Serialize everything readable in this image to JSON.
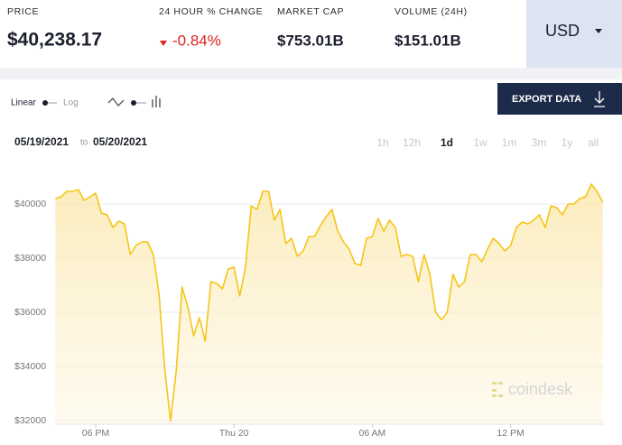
{
  "header": {
    "price_label": "PRICE",
    "price": "$40,238.17",
    "change_label": "24 HOUR % CHANGE",
    "change": "-0.84%",
    "market_cap_label": "MARKET CAP",
    "market_cap": "$753.01B",
    "volume_label": "VOLUME (24H)",
    "volume": "$151.01B",
    "currency": "USD"
  },
  "controls": {
    "linear": "Linear",
    "log": "Log",
    "export": "EXPORT DATA",
    "date_from": "05/19/2021",
    "to": "to",
    "date_to": "05/20/2021",
    "ranges": [
      "1h",
      "12h",
      "1d",
      "1w",
      "1m",
      "3m",
      "1y",
      "all"
    ],
    "selected_range": "1d"
  },
  "chart_data": {
    "type": "line",
    "watermark": "coindesk",
    "color": "#f5c518",
    "grid": true,
    "x": [
      16.25,
      16.5,
      16.75,
      17,
      17.25,
      17.5,
      17.75,
      18,
      18.25,
      18.5,
      18.75,
      19,
      19.25,
      19.5,
      19.75,
      20,
      20.25,
      20.5,
      20.75,
      21,
      21.25,
      21.5,
      21.75,
      22,
      22.25,
      22.5,
      22.75,
      23,
      23.25,
      23.5,
      23.75,
      24,
      24.25,
      24.5,
      24.75,
      25,
      25.25,
      25.5,
      25.75,
      26,
      26.25,
      26.5,
      26.75,
      27,
      27.25,
      27.5,
      27.75,
      28,
      28.25,
      28.5,
      28.75,
      29,
      29.25,
      29.5,
      29.75,
      30,
      30.25,
      30.5,
      30.75,
      31,
      31.25,
      31.5,
      31.75,
      32,
      32.25,
      32.5,
      32.75,
      33,
      33.25,
      33.5,
      33.75,
      34,
      34.25,
      34.5,
      34.75,
      35,
      35.25,
      35.5,
      35.75,
      36,
      36.25,
      36.5,
      36.75,
      37,
      37.25,
      37.5,
      37.75,
      38,
      38.25,
      38.5,
      38.75,
      39,
      39.25,
      39.5,
      39.75,
      40
    ],
    "values": [
      40200,
      40267,
      40467,
      40467,
      40533,
      40133,
      40267,
      40400,
      39667,
      39600,
      39133,
      39367,
      39267,
      38133,
      38467,
      38600,
      38600,
      38133,
      36667,
      33867,
      32000,
      33867,
      36933,
      36200,
      35133,
      35800,
      34933,
      37133,
      37067,
      36867,
      37600,
      37667,
      36600,
      37667,
      39933,
      39800,
      40467,
      40467,
      39400,
      39800,
      38533,
      38733,
      38067,
      38267,
      38800,
      38800,
      39200,
      39533,
      39800,
      39000,
      38600,
      38333,
      37800,
      37733,
      38733,
      38800,
      39467,
      39000,
      39400,
      39133,
      38067,
      38133,
      38067,
      37133,
      38133,
      37400,
      36000,
      35733,
      36000,
      37400,
      36933,
      37133,
      38133,
      38133,
      37867,
      38333,
      38733,
      38533,
      38267,
      38467,
      39133,
      39333,
      39267,
      39400,
      39600,
      39133,
      39933,
      39867,
      39600,
      40000,
      40000,
      40200,
      40267,
      40733,
      40467,
      40067
    ],
    "xlim": [
      16.2,
      40.05
    ],
    "xticks": [
      {
        "value": 18,
        "label": "06 PM"
      },
      {
        "value": 24,
        "label": "Thu 20"
      },
      {
        "value": 30,
        "label": "06 AM"
      },
      {
        "value": 36,
        "label": "12 PM"
      }
    ],
    "ylim": [
      31870,
      41200
    ],
    "yticks": [
      {
        "value": 32000,
        "label": "$32000"
      },
      {
        "value": 34000,
        "label": "$34000"
      },
      {
        "value": 36000,
        "label": "$36000"
      },
      {
        "value": 38000,
        "label": "$38000"
      },
      {
        "value": 40000,
        "label": "$40000"
      }
    ]
  }
}
